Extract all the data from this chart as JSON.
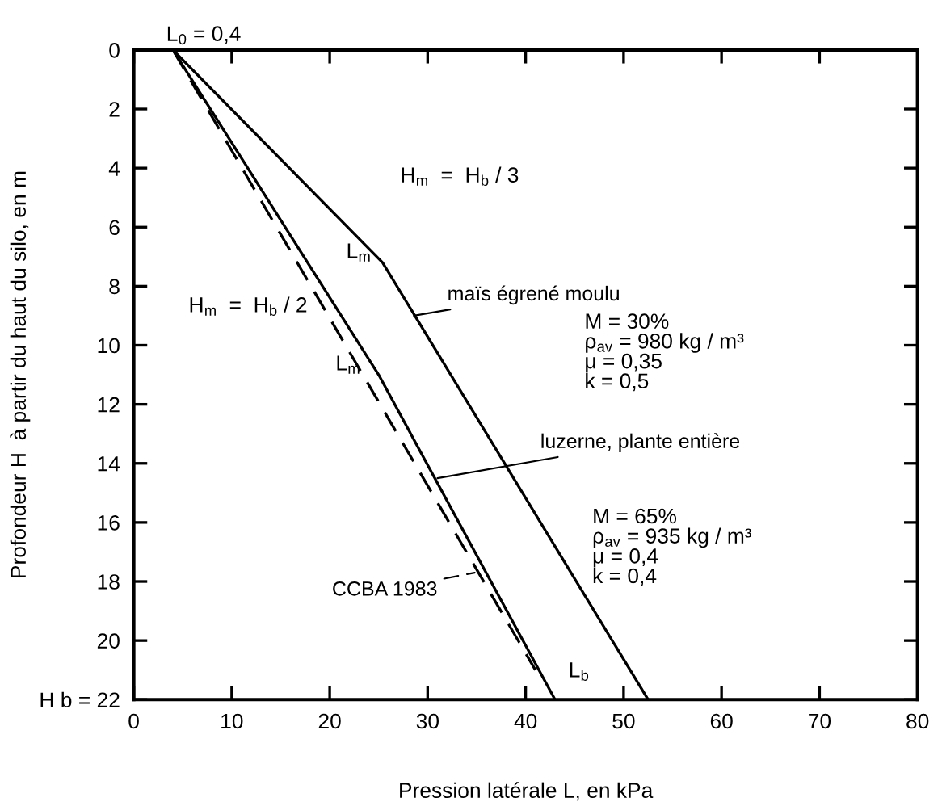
{
  "chart_data": {
    "type": "line",
    "xlabel": "Pression latérale L, en kPa",
    "ylabel": "Profondeur H  à partir du haut du silo, en m",
    "xlim": [
      0,
      80
    ],
    "xticks": [
      0,
      10,
      20,
      30,
      40,
      50,
      60,
      70,
      80
    ],
    "ylim": [
      22,
      0
    ],
    "yticks": [
      0,
      2,
      4,
      6,
      8,
      10,
      12,
      14,
      16,
      18,
      20,
      {
        "value": 22,
        "label": "H b = 22"
      }
    ],
    "grid": false,
    "marker": "none",
    "series": [
      {
        "name": "maïs égrené moulu",
        "color": "#000000",
        "line_style": "solid",
        "x": [
          4,
          25.4,
          52.5
        ],
        "values": [
          0,
          7.2,
          22
        ]
      },
      {
        "name": "luzerne, plante entière",
        "color": "#000000",
        "line_style": "solid",
        "x": [
          4,
          25,
          43
        ],
        "values": [
          0,
          11,
          22
        ]
      },
      {
        "name": "CCBA 1983",
        "color": "#000000",
        "line_style": "dashed",
        "x": [
          4,
          41
        ],
        "values": [
          0,
          21
        ]
      }
    ],
    "annotations": [
      {
        "text": "L$_{0}$ = 0,4",
        "x": 4,
        "y": 0
      },
      "H$_{m}$  =  H$_{b}$ / 3",
      "H$_{m}$  =  H$_{b}$ / 2",
      {
        "text": "L$_{m}$",
        "x": 25.4,
        "y": 7.2
      },
      {
        "text": "L$_{m}$",
        "x": 25,
        "y": 11
      },
      {
        "text": "L$_{b}$",
        "x": 43,
        "y": 22
      },
      "M = 30%\nρ$_{av}$ = 980 kg / m³\nμ = 0,35\nk = 0,5",
      "M = 65%\nρ$_{av}$ = 935 kg / m³\nμ = 0,4\nk = 0,4"
    ]
  }
}
